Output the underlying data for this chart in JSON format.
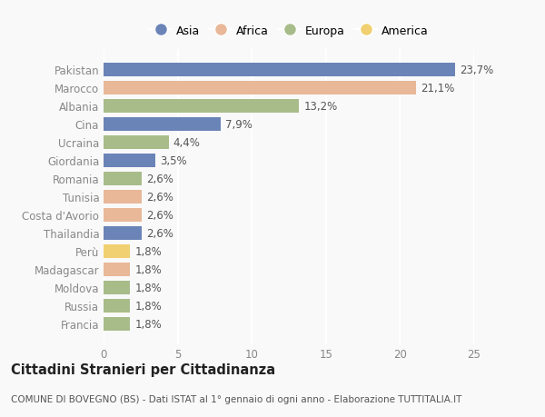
{
  "countries": [
    "Francia",
    "Russia",
    "Moldova",
    "Madagascar",
    "Perù",
    "Thailandia",
    "Costa d'Avorio",
    "Tunisia",
    "Romania",
    "Giordania",
    "Ucraina",
    "Cina",
    "Albania",
    "Marocco",
    "Pakistan"
  ],
  "values": [
    1.8,
    1.8,
    1.8,
    1.8,
    1.8,
    2.6,
    2.6,
    2.6,
    2.6,
    3.5,
    4.4,
    7.9,
    13.2,
    21.1,
    23.7
  ],
  "labels": [
    "1,8%",
    "1,8%",
    "1,8%",
    "1,8%",
    "1,8%",
    "2,6%",
    "2,6%",
    "2,6%",
    "2,6%",
    "3,5%",
    "4,4%",
    "7,9%",
    "13,2%",
    "21,1%",
    "23,7%"
  ],
  "continents": [
    "Europa",
    "Europa",
    "Europa",
    "Africa",
    "America",
    "Asia",
    "Africa",
    "Africa",
    "Europa",
    "Asia",
    "Europa",
    "Asia",
    "Europa",
    "Africa",
    "Asia"
  ],
  "colors": {
    "Asia": "#6b84b8",
    "Africa": "#e8b899",
    "Europa": "#a8bc8a",
    "America": "#f0d070"
  },
  "legend_order": [
    "Asia",
    "Africa",
    "Europa",
    "America"
  ],
  "title": "Cittadini Stranieri per Cittadinanza",
  "subtitle": "COMUNE DI BOVEGNO (BS) - Dati ISTAT al 1° gennaio di ogni anno - Elaborazione TUTTITALIA.IT",
  "xlim": [
    0,
    25
  ],
  "xticks": [
    0,
    5,
    10,
    15,
    20,
    25
  ],
  "background_color": "#f9f9f9",
  "bar_height": 0.75,
  "label_fontsize": 8.5,
  "tick_fontsize": 8.5,
  "title_fontsize": 10.5,
  "subtitle_fontsize": 7.5
}
